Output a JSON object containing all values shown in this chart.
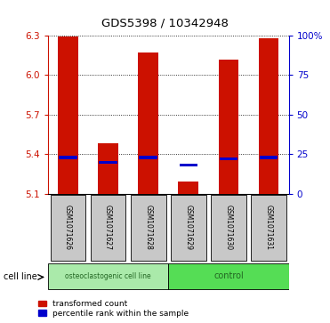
{
  "title": "GDS5398 / 10342948",
  "samples": [
    "GSM1071626",
    "GSM1071627",
    "GSM1071628",
    "GSM1071629",
    "GSM1071630",
    "GSM1071631"
  ],
  "transformed_counts": [
    6.29,
    5.48,
    6.17,
    5.19,
    6.12,
    6.28
  ],
  "percentile_ranks": [
    23,
    20,
    23,
    18,
    22,
    23
  ],
  "ylim_left": [
    5.1,
    6.3
  ],
  "yticks_left": [
    5.1,
    5.4,
    5.7,
    6.0,
    6.3
  ],
  "yticks_right": [
    0,
    25,
    50,
    75,
    100
  ],
  "ytick_labels_right": [
    "0",
    "25",
    "50",
    "75",
    "100%"
  ],
  "bar_color": "#CC1100",
  "percentile_color": "#0000CC",
  "groups": [
    {
      "label": "osteoclastogenic cell line",
      "span": [
        0,
        3
      ],
      "color": "#AAEAAA"
    },
    {
      "label": "control",
      "span": [
        3,
        6
      ],
      "color": "#55DD55"
    }
  ],
  "group_row_label": "cell line",
  "bar_width": 0.5,
  "ylabel_left_color": "#CC1100",
  "ylabel_right_color": "#0000CC",
  "grid_color": "#000000",
  "sample_box_color": "#C8C8C8",
  "legend_items": [
    "transformed count",
    "percentile rank within the sample"
  ]
}
